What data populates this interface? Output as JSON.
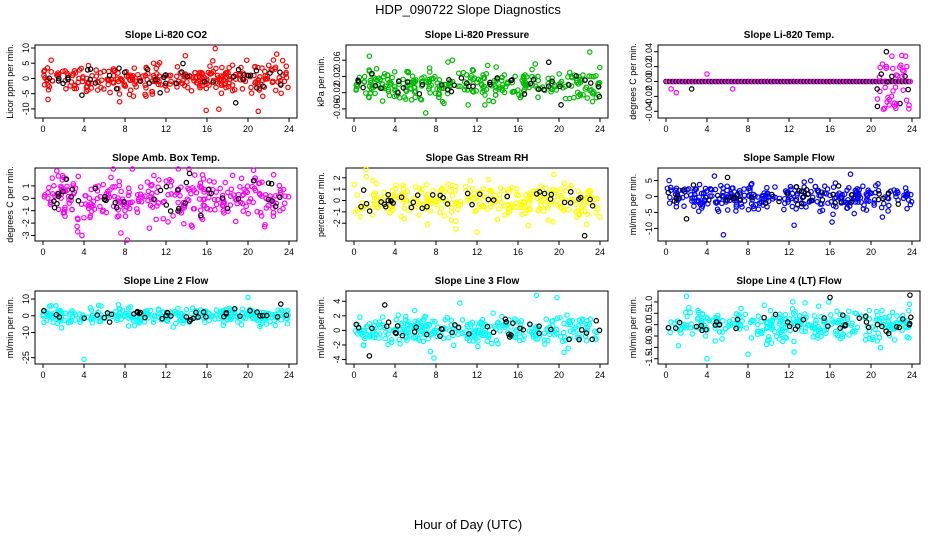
{
  "figure": {
    "title": "HDP_090722  Slope Diagnostics",
    "xlabel": "Hour of Day (UTC)"
  },
  "chart_data": [
    {
      "type": "scatter",
      "title": "Slope Li-820 CO2",
      "ylabel": "Licor ppm per min.",
      "xlim": [
        0,
        24
      ],
      "ylim": [
        -12,
        10
      ],
      "xticks": [
        0,
        4,
        8,
        12,
        16,
        20,
        24
      ],
      "yticks": [
        -10,
        -5,
        0,
        5,
        10
      ],
      "ytick_labels": [
        "-10",
        "-5",
        "0",
        "5",
        "10"
      ],
      "color": "#ff0000",
      "secondary_color": "#000000",
      "spread": 2.5,
      "n_points": 300,
      "n_secondary": 40,
      "outliers": [
        [
          16.8,
          9.8
        ],
        [
          22.8,
          8.0
        ],
        [
          18.8,
          -8.0
        ],
        [
          21.0,
          -10.8
        ],
        [
          0.8,
          6.0
        ],
        [
          3.8,
          -5.5
        ]
      ]
    },
    {
      "type": "scatter",
      "title": "Slope Li-820 Pressure",
      "ylabel": "kPa per min.",
      "xlim": [
        0,
        24
      ],
      "ylim": [
        -0.075,
        0.09
      ],
      "xticks": [
        0,
        4,
        8,
        12,
        16,
        20,
        24
      ],
      "yticks": [
        -0.06,
        -0.02,
        0.02,
        0.06
      ],
      "ytick_labels": [
        "-0.06",
        "-0.02",
        "0.02",
        "0.06"
      ],
      "color": "#00bb00",
      "secondary_color": "#000000",
      "spread": 0.02,
      "n_points": 300,
      "n_secondary": 40,
      "outliers": [
        [
          7.0,
          -0.07
        ],
        [
          9.6,
          0.06
        ],
        [
          19.0,
          0.055
        ],
        [
          23.0,
          0.08
        ],
        [
          1.5,
          0.07
        ],
        [
          20.2,
          -0.05
        ]
      ]
    },
    {
      "type": "scatter",
      "title": "Slope Li-820 Temp.",
      "ylabel": "degrees C per min.",
      "xlim": [
        0,
        24
      ],
      "ylim": [
        -0.045,
        0.045
      ],
      "xticks": [
        0,
        4,
        8,
        12,
        16,
        20,
        24
      ],
      "yticks": [
        -0.04,
        -0.02,
        0.0,
        0.02,
        0.04
      ],
      "ytick_labels": [
        "-0.04",
        "-0.02",
        "0.00",
        "0.02",
        "0.04"
      ],
      "color": "#ff00ff",
      "secondary_color": "#000000",
      "spread": 0.0,
      "n_points": 300,
      "n_secondary": 40,
      "outliers": [
        [
          0.5,
          -0.01
        ],
        [
          1.0,
          -0.015
        ],
        [
          2.5,
          -0.01
        ],
        [
          4.0,
          0.01
        ],
        [
          6.5,
          -0.01
        ],
        [
          21.5,
          0.04
        ],
        [
          22.5,
          -0.03
        ],
        [
          23.0,
          0.035
        ],
        [
          21.0,
          0.01
        ],
        [
          22.0,
          -0.02
        ],
        [
          23.5,
          0.02
        ],
        [
          20.6,
          -0.01
        ]
      ]
    },
    {
      "type": "scatter",
      "title": "Slope Amb. Box Temp.",
      "ylabel": "degrees C per min.",
      "xlim": [
        0,
        24
      ],
      "ylim": [
        -3.2,
        2.2
      ],
      "xticks": [
        0,
        4,
        8,
        12,
        16,
        20,
        24
      ],
      "yticks": [
        -3,
        -2,
        -1,
        0,
        1
      ],
      "ytick_labels": [
        "-3",
        "-2",
        "-1",
        "0",
        "1"
      ],
      "color": "#ff00ff",
      "secondary_color": "#000000",
      "spread": 0.9,
      "n_points": 300,
      "n_secondary": 40,
      "outliers": [
        [
          3.8,
          -3.0
        ],
        [
          7.6,
          -2.8
        ],
        [
          14.3,
          2.0
        ],
        [
          22.5,
          1.9
        ],
        [
          1.5,
          1.8
        ]
      ]
    },
    {
      "type": "scatter",
      "title": "Slope Gas Stream RH",
      "ylabel": "percent per min.",
      "xlim": [
        0,
        24
      ],
      "ylim": [
        -3.3,
        2.6
      ],
      "xticks": [
        0,
        4,
        8,
        12,
        16,
        20,
        24
      ],
      "yticks": [
        -2,
        -1,
        0,
        1,
        2
      ],
      "ytick_labels": [
        "-2",
        "-1",
        "0",
        "1",
        "2"
      ],
      "color": "#ffff00",
      "secondary_color": "#000000",
      "spread": 0.8,
      "n_points": 300,
      "n_secondary": 40,
      "outliers": [
        [
          12.0,
          -2.8
        ],
        [
          17.0,
          -2.2
        ],
        [
          22.5,
          -3.1
        ],
        [
          19.5,
          2.3
        ],
        [
          1.2,
          2.1
        ]
      ]
    },
    {
      "type": "scatter",
      "title": "Slope Sample Flow",
      "ylabel": "ml/min per min.",
      "xlim": [
        0,
        24
      ],
      "ylim": [
        -13,
        8
      ],
      "xticks": [
        0,
        4,
        8,
        12,
        16,
        20,
        24
      ],
      "yticks": [
        -10,
        -5,
        0,
        5
      ],
      "ytick_labels": [
        "-10",
        "-5",
        "0",
        "5"
      ],
      "color": "#0000ff",
      "secondary_color": "#000000",
      "spread": 2.0,
      "n_points": 300,
      "n_secondary": 40,
      "outliers": [
        [
          0.3,
          5.0
        ],
        [
          5.6,
          -12.0
        ],
        [
          6.0,
          6.0
        ],
        [
          18.0,
          7.0
        ],
        [
          12.5,
          -9.0
        ],
        [
          2.0,
          -7.0
        ],
        [
          16.2,
          -8.0
        ]
      ]
    },
    {
      "type": "scatter",
      "title": "Slope Line 2 Flow",
      "ylabel": "ml/min per min.",
      "xlim": [
        0,
        24
      ],
      "ylim": [
        -27,
        13
      ],
      "xticks": [
        0,
        4,
        8,
        12,
        16,
        20,
        24
      ],
      "yticks": [
        -25,
        -10,
        0,
        10
      ],
      "ytick_labels": [
        "-25",
        "-10",
        "0",
        "10"
      ],
      "color": "#00ffff",
      "secondary_color": "#000000",
      "spread": 2.5,
      "n_points": 300,
      "n_secondary": 40,
      "outliers": [
        [
          4.0,
          -26.0
        ],
        [
          20.0,
          11.0
        ],
        [
          23.2,
          7.0
        ]
      ]
    },
    {
      "type": "scatter",
      "title": "Slope Line 3 Flow",
      "ylabel": "ml/min per min.",
      "xlim": [
        0,
        24
      ],
      "ylim": [
        -4.2,
        5.0
      ],
      "xticks": [
        0,
        4,
        8,
        12,
        16,
        20,
        24
      ],
      "yticks": [
        -4,
        -2,
        0,
        2,
        4
      ],
      "ytick_labels": [
        "-4",
        "-2",
        "0",
        "2",
        "4"
      ],
      "color": "#00ffff",
      "secondary_color": "#000000",
      "spread": 1.0,
      "n_points": 300,
      "n_secondary": 40,
      "outliers": [
        [
          17.8,
          4.8
        ],
        [
          19.8,
          4.5
        ],
        [
          1.5,
          -3.5
        ],
        [
          7.8,
          -3.8
        ],
        [
          20.5,
          -3.0
        ],
        [
          3.0,
          3.5
        ]
      ]
    },
    {
      "type": "scatter",
      "title": "Slope Line 4 (LT) Flow",
      "ylabel": "ml/min per min.",
      "xlim": [
        0,
        24
      ],
      "ylim": [
        -1.6,
        1.35
      ],
      "xticks": [
        0,
        4,
        8,
        12,
        16,
        20,
        24
      ],
      "yticks": [
        -1.5,
        -1.0,
        -0.5,
        0.0,
        0.5,
        1.0
      ],
      "ytick_labels": [
        "-1.5",
        "-1.0",
        "-0.5",
        "0.0",
        "0.5",
        "1.0"
      ],
      "color": "#00ffff",
      "secondary_color": "#000000",
      "spread": 0.35,
      "n_points": 300,
      "n_secondary": 40,
      "outliers": [
        [
          4.0,
          -1.5
        ],
        [
          12.5,
          -1.2
        ],
        [
          23.8,
          1.3
        ],
        [
          2.0,
          1.25
        ],
        [
          8.0,
          -1.3
        ],
        [
          16.0,
          1.2
        ]
      ]
    }
  ]
}
